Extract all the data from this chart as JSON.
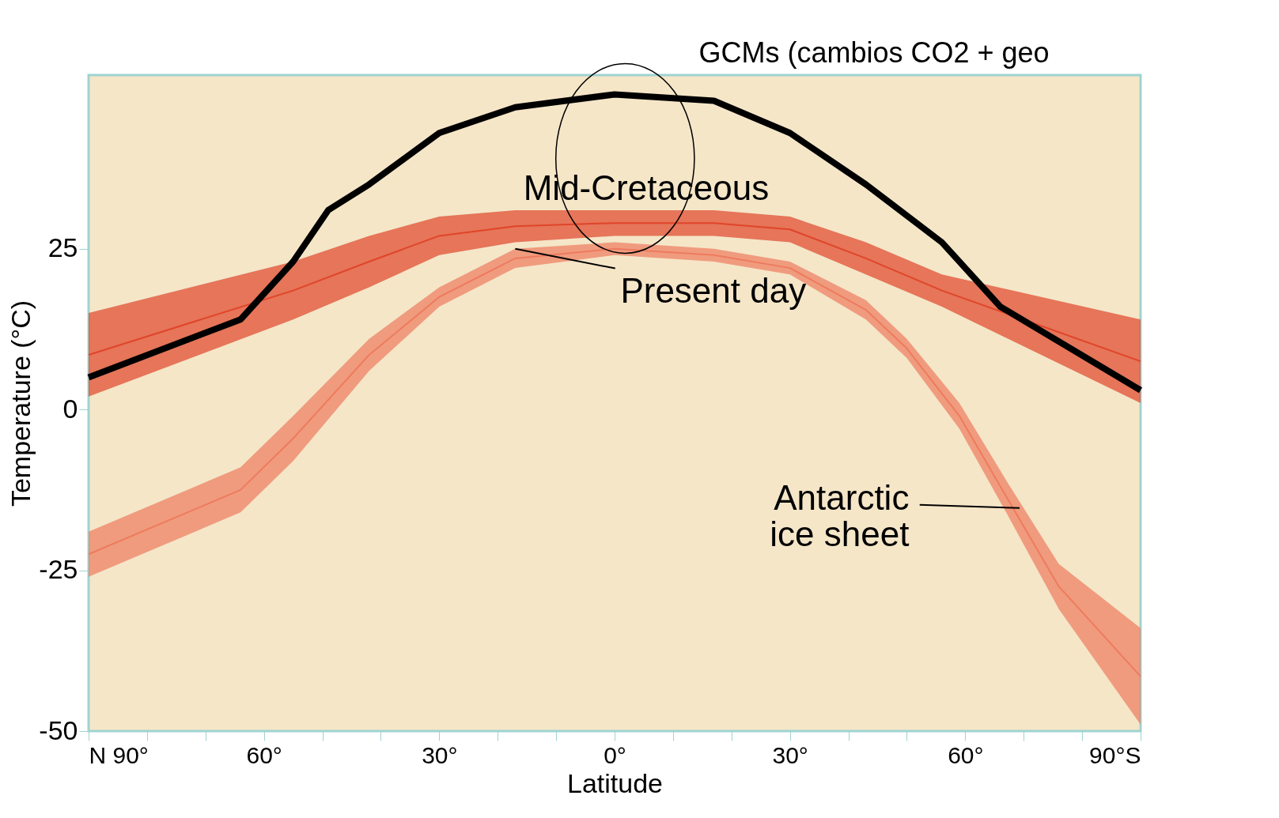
{
  "chart_data": {
    "type": "line",
    "xlabel": "Latitude",
    "ylabel": "Temperature (°C)",
    "xlim": [
      90,
      -90
    ],
    "ylim": [
      -50,
      52
    ],
    "xticks": [
      {
        "value": 90,
        "label": "N 90°"
      },
      {
        "value": 80,
        "label": null
      },
      {
        "value": 70,
        "label": null
      },
      {
        "value": 60,
        "label": "60°"
      },
      {
        "value": 50,
        "label": null
      },
      {
        "value": 40,
        "label": null
      },
      {
        "value": 30,
        "label": "30°"
      },
      {
        "value": 20,
        "label": null
      },
      {
        "value": 10,
        "label": null
      },
      {
        "value": 0,
        "label": "0°"
      },
      {
        "value": -10,
        "label": null
      },
      {
        "value": -20,
        "label": null
      },
      {
        "value": -30,
        "label": "30°"
      },
      {
        "value": -40,
        "label": null
      },
      {
        "value": -50,
        "label": null
      },
      {
        "value": -60,
        "label": "60°"
      },
      {
        "value": -70,
        "label": null
      },
      {
        "value": -80,
        "label": null
      },
      {
        "value": -90,
        "label": "90°S"
      }
    ],
    "yticks": [
      -50,
      -25,
      0,
      25
    ],
    "grid": false,
    "series": [
      {
        "name": "Mid-Cretaceous",
        "color": "#e0452a",
        "x": [
          90,
          55,
          42,
          30,
          17,
          0,
          -17,
          -30,
          -43,
          -56,
          -90
        ],
        "values": [
          8.5,
          18.5,
          23,
          27,
          28.5,
          29,
          29,
          28,
          23.5,
          18.5,
          7.5
        ],
        "lower": [
          2,
          14,
          19,
          24,
          26,
          27,
          27,
          26,
          21,
          16,
          1
        ],
        "upper": [
          15,
          23,
          27,
          30,
          31,
          31,
          31,
          30,
          26,
          21,
          14
        ]
      },
      {
        "name": "Present day",
        "color": "#ee7b5e",
        "x": [
          90,
          64,
          55,
          42,
          30,
          17,
          0,
          -17,
          -30,
          -43,
          -50,
          -59,
          -67,
          -76,
          -90
        ],
        "values": [
          -22.5,
          -12.5,
          -4.5,
          8.5,
          17.5,
          23.5,
          25,
          24,
          22,
          15.5,
          9.5,
          -1,
          -13.5,
          -27.5,
          -41.5
        ],
        "lower": [
          -26,
          -16,
          -8,
          6,
          16,
          22,
          24,
          23,
          21,
          14,
          8,
          -3,
          -16,
          -31,
          -49
        ],
        "upper": [
          -19,
          -9,
          -1,
          11,
          19,
          25,
          26,
          25,
          23,
          17,
          11,
          1,
          -11,
          -24,
          -34
        ]
      },
      {
        "name": "GCMs (cambios CO2 + geo",
        "color": "#000000",
        "x": [
          90,
          64,
          55,
          49,
          42,
          30,
          17,
          0,
          -17,
          -30,
          -43,
          -56,
          -66,
          -90
        ],
        "values": [
          5,
          14,
          23,
          31,
          35,
          43,
          47,
          49,
          48,
          43,
          35,
          26,
          16,
          3
        ]
      }
    ],
    "annotations": [
      "Antarctic\nice sheet"
    ]
  }
}
